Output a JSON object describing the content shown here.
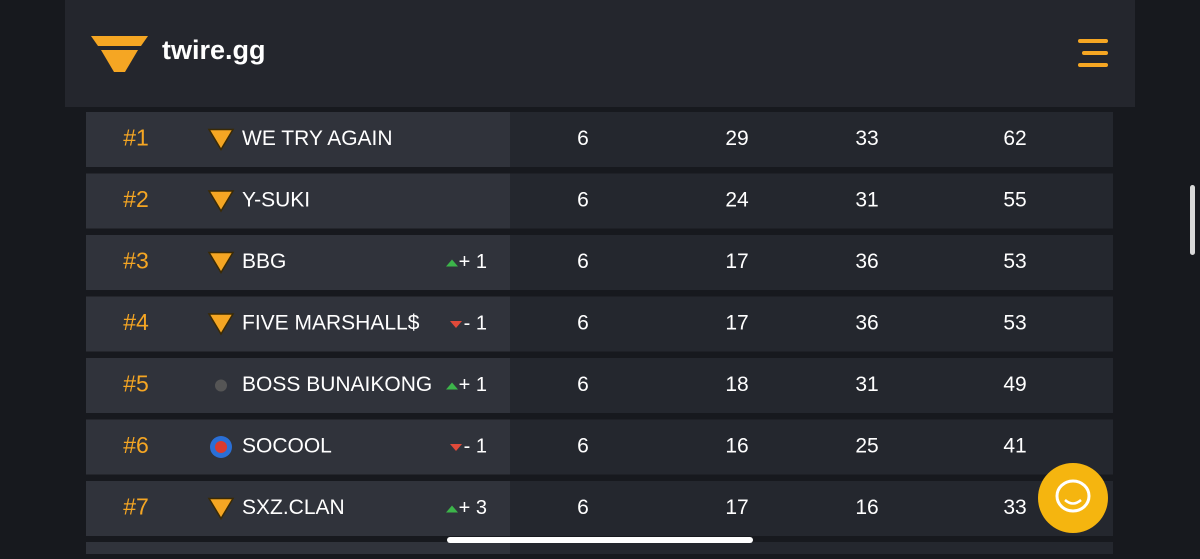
{
  "header": {
    "brand": "twire.gg"
  },
  "table": {
    "rows": [
      {
        "rank": "#1",
        "team": "WE TRY AGAIN",
        "stats": [
          6,
          29,
          33,
          62
        ]
      },
      {
        "rank": "#2",
        "team": "Y-SUKI",
        "stats": [
          6,
          24,
          31,
          55
        ]
      },
      {
        "rank": "#3",
        "team": "BBG",
        "change": "+ 1",
        "stats": [
          6,
          17,
          36,
          53
        ]
      },
      {
        "rank": "#4",
        "team": "FIVE MARSHALL$",
        "change": "- 1",
        "stats": [
          6,
          17,
          36,
          53
        ]
      },
      {
        "rank": "#5",
        "team": "BOSS BUNAIKONG",
        "change": "+ 1",
        "stats": [
          6,
          18,
          31,
          49
        ]
      },
      {
        "rank": "#6",
        "team": "SOCOOL",
        "change": "- 1",
        "stats": [
          6,
          16,
          25,
          41
        ]
      },
      {
        "rank": "#7",
        "team": "SXZ.CLAN",
        "change": "+ 3",
        "stats": [
          6,
          17,
          16,
          33
        ]
      }
    ]
  }
}
